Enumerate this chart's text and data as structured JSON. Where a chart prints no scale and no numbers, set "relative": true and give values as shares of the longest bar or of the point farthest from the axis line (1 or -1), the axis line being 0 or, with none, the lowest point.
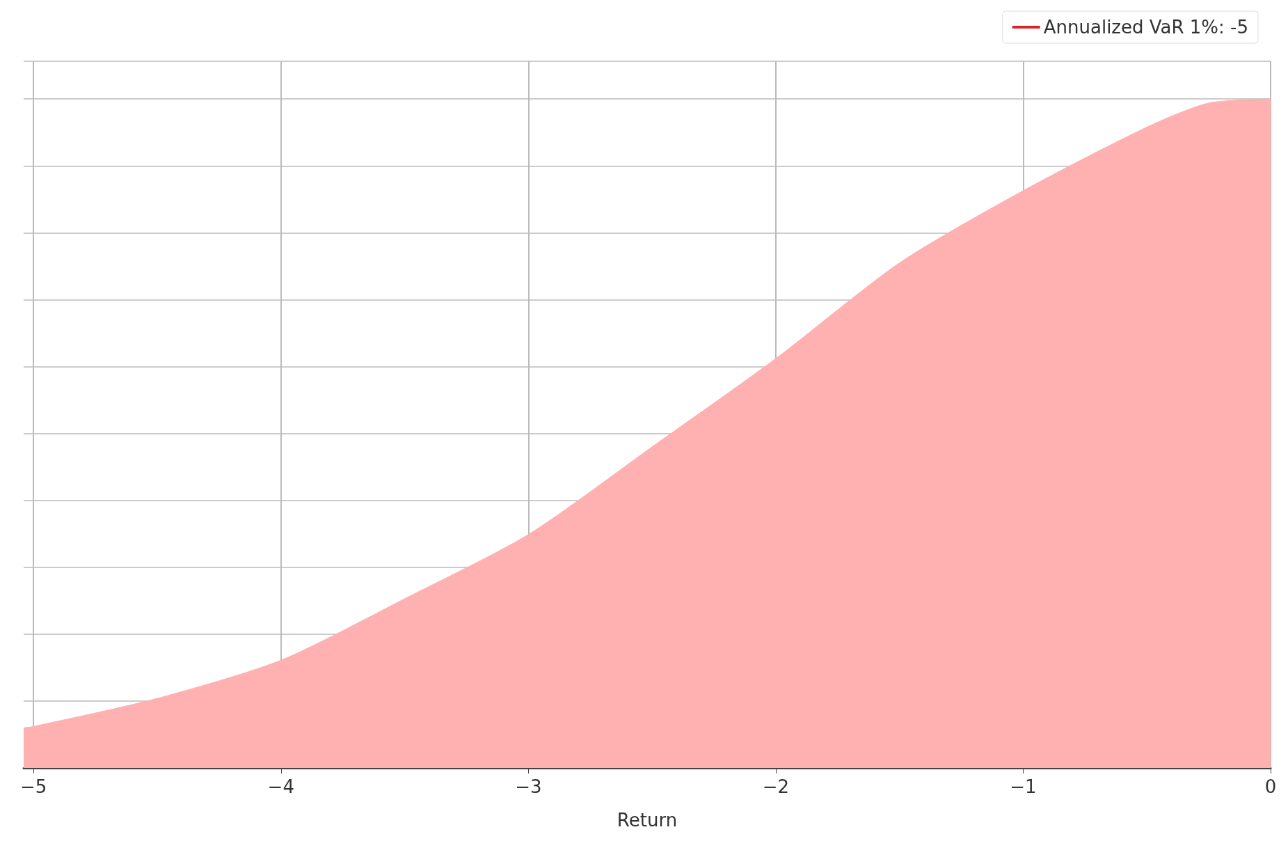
{
  "chart_data": {
    "type": "area",
    "xlabel": "Return",
    "relative": true,
    "x": [
      -5.04,
      -5,
      -4.5,
      -4,
      -3.5,
      -3,
      -2.5,
      -2,
      -1.5,
      -1,
      -0.5,
      -0.25,
      0
    ],
    "series": [
      {
        "color": "#ffb0b0",
        "values": [
          0.06,
          0.062,
          0.104,
          0.161,
          0.253,
          0.349,
          0.48,
          0.612,
          0.755,
          0.863,
          0.958,
          0.994,
          1.0
        ]
      },
      {
        "type": "line",
        "name": "Annualized VaR 1%: -5",
        "color": "#d62728",
        "values": [
          null,
          null,
          null,
          null,
          null,
          null,
          null,
          null,
          null,
          null,
          null,
          null,
          null
        ]
      }
    ],
    "xlim": [
      -5.04,
      0
    ],
    "xticks": [
      {
        "value": -5,
        "label": "−5"
      },
      {
        "value": -4,
        "label": "−4"
      },
      {
        "value": -3,
        "label": "−3"
      },
      {
        "value": -2,
        "label": "−2"
      },
      {
        "value": -1,
        "label": "−1"
      },
      {
        "value": 0,
        "label": "0"
      }
    ],
    "grid": true,
    "legend": "top right",
    "tick_labels": "x"
  }
}
